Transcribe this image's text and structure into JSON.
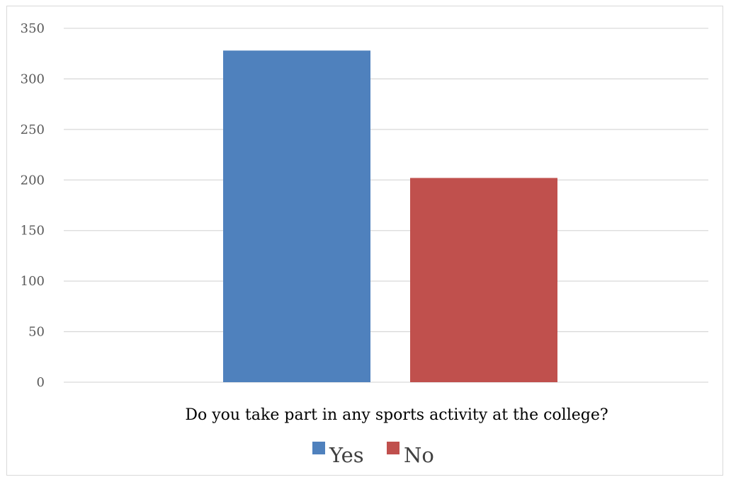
{
  "chart_data": {
    "type": "bar",
    "categories": [
      "Do you take part in any sports activity at the college?"
    ],
    "series": [
      {
        "name": "Yes",
        "values": [
          328
        ],
        "color": "#4f81bd"
      },
      {
        "name": "No",
        "values": [
          202
        ],
        "color": "#c0504d"
      }
    ],
    "title": "",
    "xlabel": "",
    "ylabel": "",
    "ylim": [
      0,
      350
    ],
    "yticks": [
      "0",
      "50",
      "100",
      "150",
      "200",
      "250",
      "300",
      "350"
    ],
    "grid": true,
    "legend_position": "bottom",
    "colors": {
      "gridline": "#d9d9d9",
      "tick_text": "#595959",
      "border": "#d9d9d9"
    }
  }
}
